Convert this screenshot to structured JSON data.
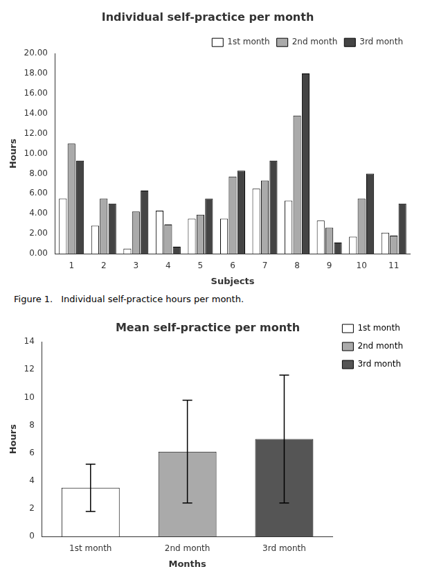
{
  "chart_data": [
    {
      "type": "bar",
      "title": "Individual self-practice per month",
      "xlabel": "Subjects",
      "ylabel": "Hours",
      "categories": [
        "1",
        "2",
        "3",
        "4",
        "5",
        "6",
        "7",
        "8",
        "9",
        "10",
        "11"
      ],
      "series": [
        {
          "name": "1st month",
          "color": "#ffffff",
          "values": [
            5.5,
            2.8,
            0.5,
            4.3,
            3.5,
            3.5,
            6.5,
            5.3,
            3.3,
            1.7,
            2.1
          ]
        },
        {
          "name": "2nd month",
          "color": "#aaaaaa",
          "values": [
            11.0,
            5.5,
            4.2,
            2.9,
            3.9,
            7.7,
            7.3,
            13.8,
            2.6,
            5.5,
            1.8
          ]
        },
        {
          "name": "3rd month",
          "color": "#444444",
          "values": [
            9.3,
            5.0,
            6.3,
            0.7,
            5.5,
            8.3,
            9.3,
            18.0,
            1.1,
            8.0,
            5.0
          ]
        }
      ],
      "ylim": [
        0,
        20.0
      ],
      "yticks": [
        {
          "value": 0.0,
          "label": "0.00"
        },
        {
          "value": 2.0,
          "label": "2.00"
        },
        {
          "value": 4.0,
          "label": "4.00"
        },
        {
          "value": 6.0,
          "label": "6.00"
        },
        {
          "value": 8.0,
          "label": "8.00"
        },
        {
          "value": 10.0,
          "label": "10.00"
        },
        {
          "value": 12.0,
          "label": "12.00"
        },
        {
          "value": 14.0,
          "label": "14.00"
        },
        {
          "value": 16.0,
          "label": "16.00"
        },
        {
          "value": 18.0,
          "label": "18.00"
        },
        {
          "value": 20.0,
          "label": "20.00"
        }
      ],
      "grid": false,
      "legend": "upper right",
      "annotations": [
        "Figure 1.",
        "Individual self-practice hours per month."
      ]
    },
    {
      "type": "bar",
      "title": "Mean self-practice per month",
      "xlabel": "Months",
      "ylabel": "Hours",
      "categories": [
        "1st month",
        "2nd month",
        "3rd month"
      ],
      "values": [
        3.5,
        6.1,
        7.0
      ],
      "errors": [
        1.7,
        3.7,
        4.6
      ],
      "colors": [
        "#ffffff",
        "#aaaaaa",
        "#555555"
      ],
      "ylim": [
        0,
        14
      ],
      "yticks": [
        0,
        2,
        4,
        6,
        8,
        10,
        12,
        14
      ],
      "grid": false,
      "legend": "right"
    }
  ]
}
